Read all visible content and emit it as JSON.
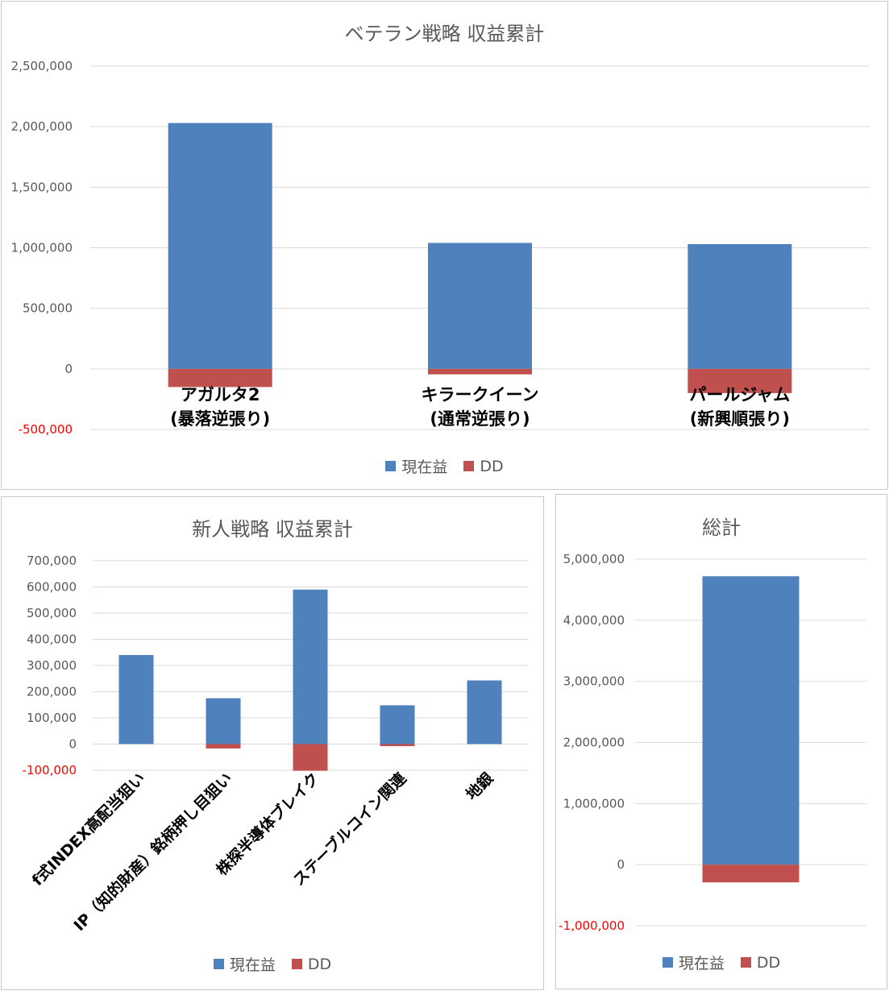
{
  "colors": {
    "profit": "#4F81BD",
    "dd": "#C0504D",
    "grid": "#d9d9d9",
    "negative_tick": "#ff0000"
  },
  "legend": {
    "profit": "現在益",
    "dd": "DD"
  },
  "chart_data": [
    {
      "id": "veteran",
      "type": "bar",
      "stacked": true,
      "title": "ベテラン戦略 収益累計",
      "categories": [
        [
          "アガルタ2",
          "(暴落逆張り)"
        ],
        [
          "キラークイーン",
          "(通常逆張り)"
        ],
        [
          "パールジャム",
          "(新興順張り)"
        ]
      ],
      "series": [
        {
          "name": "現在益",
          "values": [
            2030000,
            1040000,
            1030000
          ]
        },
        {
          "name": "DD",
          "values": [
            -150000,
            -45000,
            -200000
          ]
        }
      ],
      "ylim": [
        -500000,
        2500000
      ],
      "yticks": [
        2500000,
        2000000,
        1500000,
        1000000,
        500000,
        0,
        -500000
      ],
      "ytick_labels": [
        "2,500,000",
        "2,000,000",
        "1,500,000",
        "1,000,000",
        "500,000",
        "0",
        "-500,000"
      ],
      "grid": true,
      "legend_position": "bottom"
    },
    {
      "id": "newcomer",
      "type": "bar",
      "stacked": true,
      "title": "新人戦略 収益累計",
      "categories": [
        "f式INDEX高配当狙い",
        "IP（知的財産）銘柄押し目狙い",
        "株探半導体ブレイク",
        "ステーブルコイン関連",
        "地銀"
      ],
      "series": [
        {
          "name": "現在益",
          "values": [
            340000,
            175000,
            590000,
            148000,
            243000
          ]
        },
        {
          "name": "DD",
          "values": [
            0,
            -17000,
            -102000,
            -8000,
            0
          ]
        }
      ],
      "ylim": [
        -100000,
        700000
      ],
      "yticks": [
        700000,
        600000,
        500000,
        400000,
        300000,
        200000,
        100000,
        0,
        -100000
      ],
      "ytick_labels": [
        "700,000",
        "600,000",
        "500,000",
        "400,000",
        "300,000",
        "200,000",
        "100,000",
        "0",
        "-100,000"
      ],
      "grid": true,
      "legend_position": "bottom"
    },
    {
      "id": "total",
      "type": "bar",
      "stacked": true,
      "title": "総計",
      "categories": [
        ""
      ],
      "series": [
        {
          "name": "現在益",
          "values": [
            4720000
          ]
        },
        {
          "name": "DD",
          "values": [
            -290000
          ]
        }
      ],
      "ylim": [
        -1000000,
        5000000
      ],
      "yticks": [
        5000000,
        4000000,
        3000000,
        2000000,
        1000000,
        0,
        -1000000
      ],
      "ytick_labels": [
        "5,000,000",
        "4,000,000",
        "3,000,000",
        "2,000,000",
        "1,000,000",
        "0",
        "-1,000,000"
      ],
      "grid": true,
      "legend_position": "bottom"
    }
  ]
}
